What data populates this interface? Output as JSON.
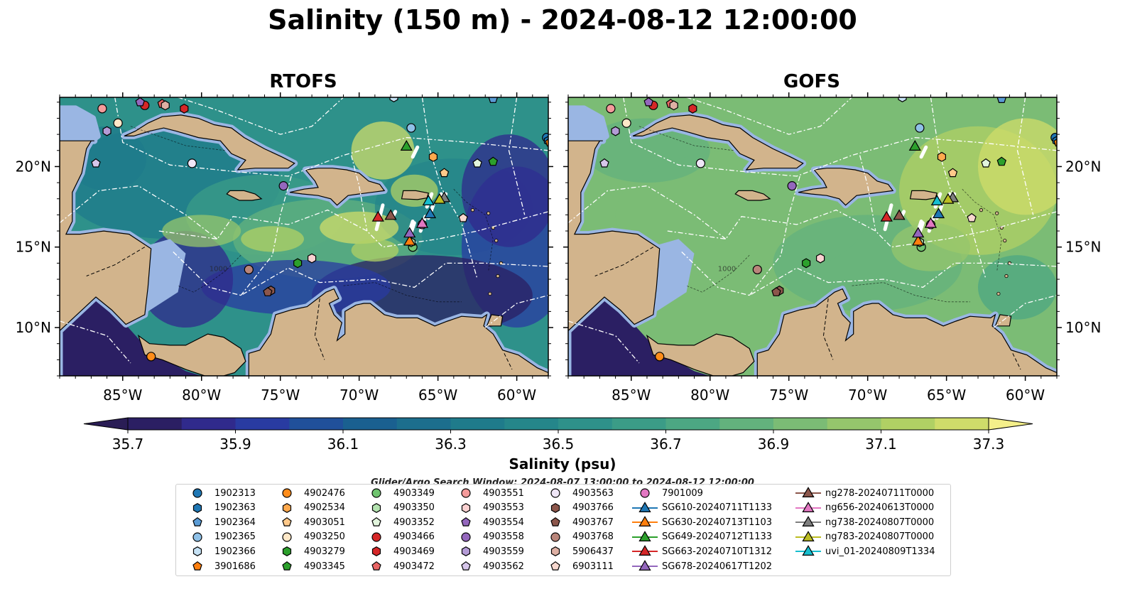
{
  "title": "Salinity (150 m) - 2024-08-12 12:00:00",
  "panels": [
    {
      "title": "RTOFS",
      "model": "rtofs"
    },
    {
      "title": "GOFS",
      "model": "gofs"
    }
  ],
  "map": {
    "lon_range": [
      -89,
      -58
    ],
    "lat_range": [
      7,
      24.3
    ],
    "lon_ticks": [
      "85°W",
      "80°W",
      "75°W",
      "70°W",
      "65°W",
      "60°W"
    ],
    "lon_tick_values": [
      -85,
      -80,
      -75,
      -70,
      -65,
      -60
    ],
    "lat_ticks": [
      "20°N",
      "15°N",
      "10°N"
    ],
    "lat_tick_values": [
      20,
      15,
      10
    ],
    "land_color": "#d2b48c",
    "shelf_color": "#9ab6e3",
    "contour_label": "1000"
  },
  "colorbar": {
    "label": "Salinity (psu)",
    "min": 35.7,
    "max": 37.3,
    "ticks": [
      "35.7",
      "35.9",
      "36.1",
      "36.3",
      "36.5",
      "36.7",
      "36.9",
      "37.1",
      "37.3"
    ],
    "colors": [
      "#2b1f63",
      "#302a8c",
      "#293ba1",
      "#20509a",
      "#1a6090",
      "#1c6e8d",
      "#1f7b8b",
      "#25868a",
      "#2e918a",
      "#3b9c87",
      "#4ca783",
      "#63b27d",
      "#7bbc75",
      "#95c66c",
      "#b0d064",
      "#cfdc6a"
    ],
    "over_color": "#f4ef8a",
    "under_color": "#2a1d55"
  },
  "search_window": "Glider/Argo Search Window: 2024-08-07 13:00:00 to 2024-08-12 12:00:00",
  "legend": {
    "columns": [
      [
        {
          "label": "1902313",
          "marker": "circle",
          "color": "#1f77b4"
        },
        {
          "label": "1902363",
          "marker": "hexagon",
          "color": "#1f77b4"
        },
        {
          "label": "1902364",
          "marker": "pentagon",
          "color": "#5a9bd5"
        },
        {
          "label": "1902365",
          "marker": "circle",
          "color": "#8fc1e8"
        },
        {
          "label": "1902366",
          "marker": "hexagon",
          "color": "#c6e2f5"
        },
        {
          "label": "3901686",
          "marker": "pentagon",
          "color": "#ff7f0e"
        }
      ],
      [
        {
          "label": "4902476",
          "marker": "circle",
          "color": "#ff8c1a"
        },
        {
          "label": "4902534",
          "marker": "hexagon",
          "color": "#ffa94d"
        },
        {
          "label": "4903051",
          "marker": "pentagon",
          "color": "#ffc98a"
        },
        {
          "label": "4903250",
          "marker": "circle",
          "color": "#ffe8c8"
        },
        {
          "label": "4903279",
          "marker": "hexagon",
          "color": "#2ca02c"
        },
        {
          "label": "4903345",
          "marker": "pentagon",
          "color": "#2ca02c"
        }
      ],
      [
        {
          "label": "4903349",
          "marker": "circle",
          "color": "#6fc46f"
        },
        {
          "label": "4903350",
          "marker": "hexagon",
          "color": "#b4e3b0"
        },
        {
          "label": "4903352",
          "marker": "pentagon",
          "color": "#e2f5dd"
        },
        {
          "label": "4903466",
          "marker": "circle",
          "color": "#d62728"
        },
        {
          "label": "4903469",
          "marker": "hexagon",
          "color": "#d62728"
        },
        {
          "label": "4903472",
          "marker": "pentagon",
          "color": "#e86464"
        }
      ],
      [
        {
          "label": "4903551",
          "marker": "circle",
          "color": "#f49b9b"
        },
        {
          "label": "4903553",
          "marker": "hexagon",
          "color": "#fad1d1"
        },
        {
          "label": "4903554",
          "marker": "pentagon",
          "color": "#9467bd"
        },
        {
          "label": "4903558",
          "marker": "circle",
          "color": "#9467bd"
        },
        {
          "label": "4903559",
          "marker": "hexagon",
          "color": "#b49bd6"
        },
        {
          "label": "4903562",
          "marker": "pentagon",
          "color": "#d6c6ea"
        }
      ],
      [
        {
          "label": "4903563",
          "marker": "circle",
          "color": "#efe6f7"
        },
        {
          "label": "4903766",
          "marker": "hexagon",
          "color": "#8c564b"
        },
        {
          "label": "4903767",
          "marker": "pentagon",
          "color": "#8c564b"
        },
        {
          "label": "4903768",
          "marker": "circle",
          "color": "#b9857a"
        },
        {
          "label": "5906437",
          "marker": "hexagon",
          "color": "#deb0a4"
        },
        {
          "label": "6903111",
          "marker": "pentagon",
          "color": "#f7d8cf"
        }
      ],
      [
        {
          "label": "7901009",
          "marker": "circle",
          "color": "#e377c2"
        },
        {
          "label": "SG610-20240711T1133",
          "marker": "triangle",
          "color": "#1f77b4"
        },
        {
          "label": "SG630-20240713T1103",
          "marker": "triangle",
          "color": "#ff7f0e"
        },
        {
          "label": "SG649-20240712T1133",
          "marker": "triangle",
          "color": "#2ca02c"
        },
        {
          "label": "SG663-20240710T1312",
          "marker": "triangle",
          "color": "#d62728"
        },
        {
          "label": "SG678-20240617T1202",
          "marker": "triangle",
          "color": "#9467bd"
        }
      ],
      [
        {
          "label": "ng278-20240711T0000",
          "marker": "triangle",
          "color": "#8c564b"
        },
        {
          "label": "ng656-20240613T0000",
          "marker": "triangle",
          "color": "#e377c2"
        },
        {
          "label": "ng738-20240807T0000",
          "marker": "triangle",
          "color": "#7f7f7f"
        },
        {
          "label": "ng783-20240807T0000",
          "marker": "triangle",
          "color": "#bcbd22"
        },
        {
          "label": "uvi_01-20240809T1334",
          "marker": "triangle",
          "color": "#17becf"
        }
      ]
    ]
  },
  "argo_floats": [
    {
      "label": "1902313",
      "lon": -58.1,
      "lat": 21.8
    },
    {
      "label": "1902363",
      "lon": -58.0,
      "lat": 21.6
    },
    {
      "label": "1902364",
      "lon": -61.5,
      "lat": 24.2
    },
    {
      "label": "1902365",
      "lon": -66.7,
      "lat": 22.4
    },
    {
      "label": "1902366",
      "lon": -67.8,
      "lat": 24.3
    },
    {
      "label": "3901686",
      "lon": -57.9,
      "lat": 21.5
    },
    {
      "label": "4902476",
      "lon": -83.2,
      "lat": 8.2
    },
    {
      "label": "4902534",
      "lon": -65.3,
      "lat": 20.6
    },
    {
      "label": "4903051",
      "lon": -64.6,
      "lat": 19.6
    },
    {
      "label": "4903250",
      "lon": -85.3,
      "lat": 22.7
    },
    {
      "label": "4903279",
      "lon": -73.9,
      "lat": 14.0
    },
    {
      "label": "4903345",
      "lon": -61.5,
      "lat": 20.3
    },
    {
      "label": "4903349",
      "lon": -66.6,
      "lat": 15.0
    },
    {
      "label": "4903350",
      "lon": -66.7,
      "lat": 15.3
    },
    {
      "label": "4903352",
      "lon": -62.5,
      "lat": 20.2
    },
    {
      "label": "4903466",
      "lon": -83.6,
      "lat": 23.8
    },
    {
      "label": "4903469",
      "lon": -81.1,
      "lat": 23.6
    },
    {
      "label": "4903472",
      "lon": -82.5,
      "lat": 23.9
    },
    {
      "label": "4903551",
      "lon": -86.3,
      "lat": 23.6
    },
    {
      "label": "4903553",
      "lon": -73.0,
      "lat": 14.3
    },
    {
      "label": "4903554",
      "lon": -83.9,
      "lat": 24.0
    },
    {
      "label": "4903558",
      "lon": -74.8,
      "lat": 18.8
    },
    {
      "label": "4903559",
      "lon": -86.0,
      "lat": 22.2
    },
    {
      "label": "4903562",
      "lon": -86.7,
      "lat": 20.2
    },
    {
      "label": "4903563",
      "lon": -80.6,
      "lat": 20.2
    },
    {
      "label": "4903766",
      "lon": -75.6,
      "lat": 12.3
    },
    {
      "label": "4903767",
      "lon": -75.8,
      "lat": 12.2
    },
    {
      "label": "4903768",
      "lon": -77.0,
      "lat": 13.6
    },
    {
      "label": "5906437",
      "lon": -82.3,
      "lat": 23.8
    },
    {
      "label": "6903111",
      "lon": -63.4,
      "lat": 16.8
    },
    {
      "label": "7901009",
      "lon": -66.0,
      "lat": 16.4
    }
  ],
  "gliders": [
    {
      "label": "SG610-20240711T1133",
      "lon": -65.5,
      "lat": 17.1,
      "track": [
        [
          -65.6,
          16.8
        ],
        [
          -65.3,
          17.6
        ]
      ]
    },
    {
      "label": "SG630-20240713T1103",
      "lon": -66.8,
      "lat": 15.4,
      "track": [
        [
          -66.7,
          15.9
        ],
        [
          -66.5,
          16.5
        ]
      ]
    },
    {
      "label": "SG649-20240712T1133",
      "lon": -67.0,
      "lat": 21.3,
      "track": [
        [
          -66.6,
          20.6
        ],
        [
          -66.3,
          21.2
        ]
      ]
    },
    {
      "label": "SG663-20240710T1312",
      "lon": -68.8,
      "lat": 16.9,
      "track": [
        [
          -68.9,
          16.1
        ],
        [
          -68.5,
          17.6
        ]
      ]
    },
    {
      "label": "SG678-20240617T1202",
      "lon": -66.8,
      "lat": 15.9,
      "track": [
        [
          -66.8,
          16.0
        ],
        [
          -66.6,
          16.6
        ]
      ]
    },
    {
      "label": "ng278-20240711T0000",
      "lon": -68.0,
      "lat": 17.0,
      "track": [
        [
          -67.9,
          16.8
        ],
        [
          -67.7,
          17.2
        ]
      ]
    },
    {
      "label": "ng656-20240613T0000",
      "lon": -66.0,
      "lat": 16.5,
      "track": [
        [
          -66.1,
          16.0
        ],
        [
          -65.8,
          16.9
        ]
      ]
    },
    {
      "label": "ng738-20240807T0000",
      "lon": -64.6,
      "lat": 18.1,
      "track": [
        [
          -64.7,
          17.9
        ],
        [
          -64.5,
          18.3
        ]
      ]
    },
    {
      "label": "ng783-20240807T0000",
      "lon": -64.9,
      "lat": 18.0,
      "track": [
        [
          -65.0,
          17.8
        ],
        [
          -64.8,
          18.3
        ]
      ]
    },
    {
      "label": "uvi_01-20240809T1334",
      "lon": -65.6,
      "lat": 17.9,
      "track": [
        [
          -65.7,
          17.5
        ],
        [
          -65.4,
          18.3
        ]
      ]
    }
  ]
}
